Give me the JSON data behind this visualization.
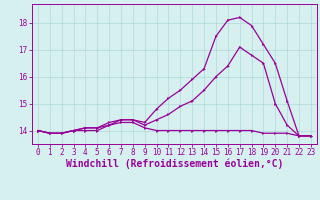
{
  "x": [
    0,
    1,
    2,
    3,
    4,
    5,
    6,
    7,
    8,
    9,
    10,
    11,
    12,
    13,
    14,
    15,
    16,
    17,
    18,
    19,
    20,
    21,
    22,
    23
  ],
  "line1": [
    14.0,
    13.9,
    13.9,
    14.0,
    14.0,
    14.0,
    14.2,
    14.3,
    14.3,
    14.1,
    14.0,
    14.0,
    14.0,
    14.0,
    14.0,
    14.0,
    14.0,
    14.0,
    14.0,
    13.9,
    13.9,
    13.9,
    13.8,
    13.8
  ],
  "line2": [
    14.0,
    13.9,
    13.9,
    14.0,
    14.1,
    14.1,
    14.2,
    14.4,
    14.4,
    14.2,
    14.4,
    14.6,
    14.9,
    15.1,
    15.5,
    16.0,
    16.4,
    17.1,
    16.8,
    16.5,
    15.0,
    14.2,
    13.8,
    13.8
  ],
  "line3": [
    14.0,
    13.9,
    13.9,
    14.0,
    14.1,
    14.1,
    14.3,
    14.4,
    14.4,
    14.3,
    14.8,
    15.2,
    15.5,
    15.9,
    16.3,
    17.5,
    18.1,
    18.2,
    17.9,
    17.2,
    16.5,
    15.1,
    13.8,
    13.8
  ],
  "line_color": "#990099",
  "bg_color": "#d6f0f0",
  "grid_color": "#add8d8",
  "xlabel": "Windchill (Refroidissement éolien,°C)",
  "ylim": [
    13.5,
    18.7
  ],
  "xlim": [
    -0.5,
    23.5
  ],
  "yticks": [
    14,
    15,
    16,
    17,
    18
  ],
  "xticks": [
    0,
    1,
    2,
    3,
    4,
    5,
    6,
    7,
    8,
    9,
    10,
    11,
    12,
    13,
    14,
    15,
    16,
    17,
    18,
    19,
    20,
    21,
    22,
    23
  ],
  "tick_fontsize": 5.5,
  "xlabel_fontsize": 7.0
}
